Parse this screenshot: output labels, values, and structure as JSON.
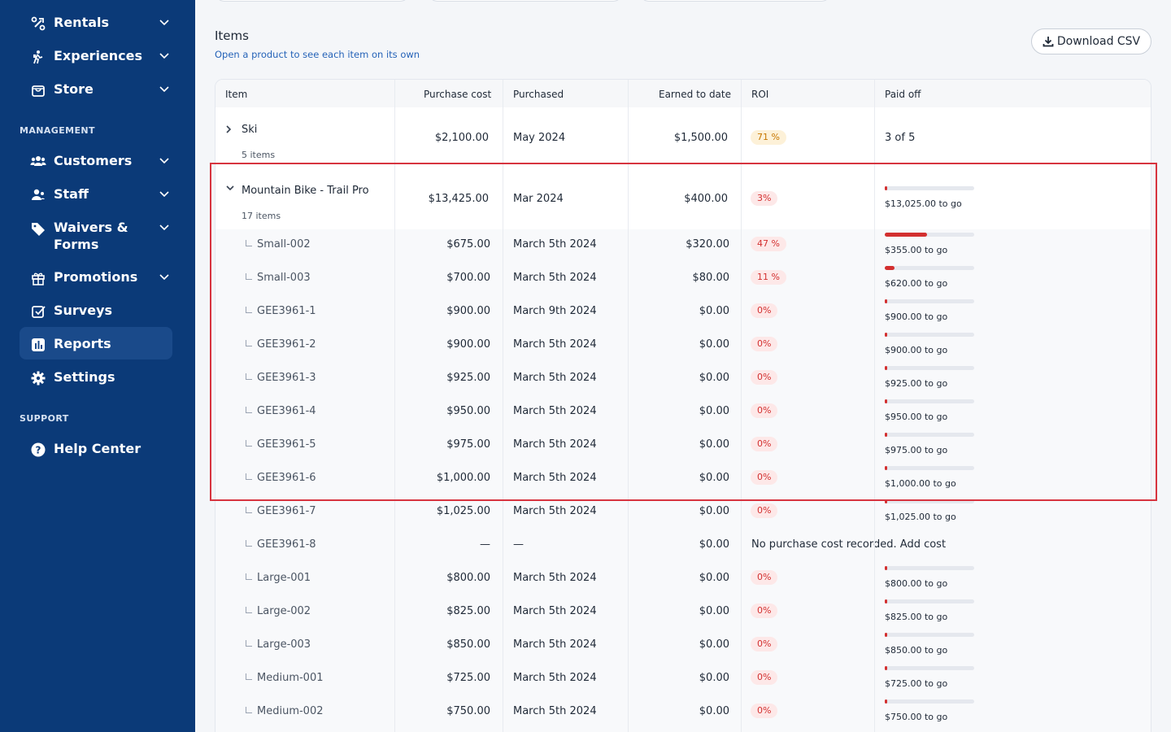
{
  "sidebar": {
    "items_top": [
      {
        "label": "Rentals",
        "icon": "bicycle-icon"
      },
      {
        "label": "Experiences",
        "icon": "hiker-icon"
      },
      {
        "label": "Store",
        "icon": "store-icon"
      }
    ],
    "management_label": "MANAGEMENT",
    "management": [
      {
        "label": "Customers",
        "icon": "users-icon"
      },
      {
        "label": "Staff",
        "icon": "staff-icon"
      },
      {
        "label": "Waivers &",
        "label2": "Forms",
        "icon": "tag-icon"
      },
      {
        "label": "Promotions",
        "icon": "gift-icon"
      },
      {
        "label": "Surveys",
        "icon": "checkbox-icon"
      },
      {
        "label": "Reports",
        "icon": "chart-icon"
      },
      {
        "label": "Settings",
        "icon": "gear-icon"
      }
    ],
    "support_label": "SUPPORT",
    "support": [
      {
        "label": "Help Center",
        "icon": "help-icon"
      }
    ]
  },
  "main": {
    "title": "Items",
    "subtitle": "Open a product to see each item on its own",
    "download_label": "Download CSV",
    "columns": [
      "Item",
      "Purchase cost",
      "Purchased",
      "Earned to date",
      "ROI",
      "Paid off"
    ],
    "groups": [
      {
        "name": "Ski",
        "count": "5 items",
        "cost": "$2,100.00",
        "purchased": "May 2024",
        "earned": "$1,500.00",
        "roi": "71 %",
        "paid_off": "3 of 5"
      },
      {
        "name": "Mountain Bike - Trail Pro",
        "count": "17 items",
        "cost": "$13,425.00",
        "purchased": "Mar 2024",
        "earned": "$400.00",
        "roi": "3%",
        "togo": "$13,025.00  to go",
        "progress": 0.03
      }
    ],
    "children": [
      {
        "name": "Small-002",
        "cost": "$675.00",
        "purchased": "March 5th 2024",
        "earned": "$320.00",
        "roi": "47 %",
        "togo": "$355.00  to go",
        "progress": 0.47
      },
      {
        "name": "Small-003",
        "cost": "$700.00",
        "purchased": "March 5th 2024",
        "earned": "$80.00",
        "roi": "11  %",
        "togo": "$620.00  to go",
        "progress": 0.11
      },
      {
        "name": "GEE3961-1",
        "cost": "$900.00",
        "purchased": "March 9th 2024",
        "earned": "$0.00",
        "roi": "0%",
        "togo": "$900.00 to go",
        "progress": 0
      },
      {
        "name": "GEE3961-2",
        "cost": "$900.00",
        "purchased": "March 5th 2024",
        "earned": "$0.00",
        "roi": "0%",
        "togo": "$900.00 to go",
        "progress": 0
      },
      {
        "name": "GEE3961-3",
        "cost": "$925.00",
        "purchased": "March 5th 2024",
        "earned": "$0.00",
        "roi": "0%",
        "togo": "$925.00  to go",
        "progress": 0
      },
      {
        "name": "GEE3961-4",
        "cost": "$950.00",
        "purchased": "March 5th 2024",
        "earned": "$0.00",
        "roi": "0%",
        "togo": "$950.00  to go",
        "progress": 0
      },
      {
        "name": "GEE3961-5",
        "cost": "$975.00",
        "purchased": "March 5th 2024",
        "earned": "$0.00",
        "roi": "0%",
        "togo": "$975.00  to go",
        "progress": 0
      },
      {
        "name": "GEE3961-6",
        "cost": "$1,000.00",
        "purchased": "March 5th 2024",
        "earned": "$0.00",
        "roi": "0%",
        "togo": "$1,000.00  to go",
        "progress": 0
      },
      {
        "name": "GEE3961-7",
        "cost": "$1,025.00",
        "purchased": "March 5th 2024",
        "earned": "$0.00",
        "roi": "0%",
        "togo": "$1,025.00  to go",
        "progress": 0
      },
      {
        "name": "GEE3961-8",
        "cost": "—",
        "purchased": "—",
        "earned": "$0.00",
        "note": "No purchase cost recorded.",
        "add_cost": "Add cost"
      },
      {
        "name": "Large-001",
        "cost": "$800.00",
        "purchased": "March 5th 2024",
        "earned": "$0.00",
        "roi": "0%",
        "togo": "$800.00 to go",
        "progress": 0
      },
      {
        "name": "Large-002",
        "cost": "$825.00",
        "purchased": "March 5th 2024",
        "earned": "$0.00",
        "roi": "0%",
        "togo": "$825.00 to go",
        "progress": 0
      },
      {
        "name": "Large-003",
        "cost": "$850.00",
        "purchased": "March 5th 2024",
        "earned": "$0.00",
        "roi": "0%",
        "togo": "$850.00 to go",
        "progress": 0
      },
      {
        "name": "Medium-001",
        "cost": "$725.00",
        "purchased": "March 5th 2024",
        "earned": "$0.00",
        "roi": "0%",
        "togo": "$725.00  to go",
        "progress": 0
      },
      {
        "name": "Medium-002",
        "cost": "$750.00",
        "purchased": "March 5th 2024",
        "earned": "$0.00",
        "roi": "0%",
        "togo": "$750.00 to go",
        "progress": 0
      },
      {
        "name": "",
        "progress": 0
      }
    ]
  }
}
